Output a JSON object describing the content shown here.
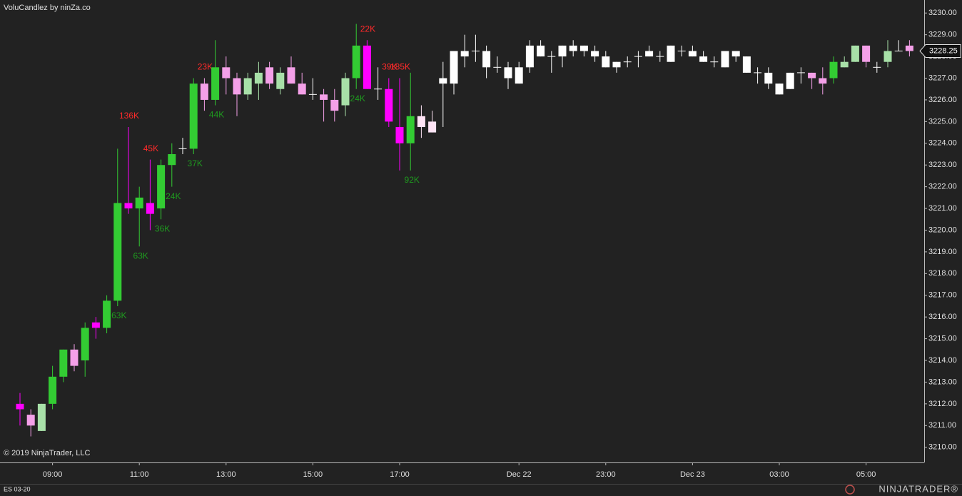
{
  "chart_data": {
    "type": "candlestick",
    "title": "VoluCandlez by ninZa.co",
    "copyright": "© 2019 NinjaTrader, LLC",
    "instrument": "ES 03-20",
    "brand": "NINJATRADER®",
    "categories": [
      null,
      null,
      null,
      "09:00",
      null,
      null,
      null,
      null,
      null,
      null,
      null,
      "11:00",
      null,
      null,
      null,
      null,
      null,
      null,
      null,
      "13:00",
      null,
      null,
      null,
      null,
      null,
      null,
      null,
      "15:00",
      null,
      null,
      null,
      null,
      null,
      null,
      null,
      "17:00",
      null,
      null,
      null,
      null,
      null,
      null,
      null,
      null,
      null,
      null,
      "Dec 22",
      null,
      null,
      null,
      null,
      null,
      null,
      null,
      "23:00",
      null,
      null,
      null,
      null,
      null,
      null,
      null,
      "Dec 23",
      null,
      null,
      null,
      null,
      null,
      null,
      null,
      "03:00",
      null,
      null,
      null,
      null,
      null,
      null,
      null,
      "05:00",
      null,
      null,
      null,
      null
    ],
    "open": [
      3212.0,
      3211.5,
      3210.75,
      3212.0,
      3213.25,
      3214.5,
      3214.0,
      3215.75,
      3215.5,
      3216.75,
      3221.25,
      3221.0,
      3221.25,
      3221.0,
      3223.0,
      3223.75,
      3223.75,
      3226.75,
      3226.0,
      3227.5,
      3227.0,
      3226.25,
      3226.75,
      3227.5,
      3226.5,
      3227.5,
      3226.75,
      3226.25,
      3226.25,
      3226.0,
      3225.75,
      3227.0,
      3228.5,
      3226.5,
      3226.5,
      3224.75,
      3224.0,
      3225.25,
      3225.0,
      3226.75,
      3226.75,
      3228.0,
      3228.25,
      3228.25,
      3227.5,
      3227.5,
      3226.75,
      3227.5,
      3228.5,
      3228.0,
      3228.0,
      3228.25,
      3228.5,
      3228.25,
      3228.0,
      3227.75,
      3227.75,
      3228.0,
      3228.0,
      3228.0,
      3227.75,
      3228.25,
      3228.25,
      3228.0,
      3227.75,
      3227.5,
      3228.25,
      3228.0,
      3227.25,
      3227.25,
      3226.75,
      3226.5,
      3227.25,
      3227.25,
      3227.0,
      3227.0,
      3227.5,
      3227.75,
      3228.5,
      3227.5,
      3227.75,
      3228.25,
      3228.5
    ],
    "high": [
      3212.5,
      3211.75,
      3212.0,
      3213.75,
      3214.5,
      3214.75,
      3215.75,
      3216.0,
      3217.0,
      3223.75,
      3224.75,
      3222.0,
      3223.25,
      3223.25,
      3224.0,
      3224.25,
      3227.0,
      3227.0,
      3228.75,
      3228.0,
      3227.25,
      3227.25,
      3227.75,
      3227.75,
      3227.5,
      3228.0,
      3227.25,
      3227.0,
      3226.5,
      3226.5,
      3227.25,
      3229.5,
      3228.75,
      3227.5,
      3227.0,
      3227.0,
      3227.25,
      3225.75,
      3225.5,
      3227.75,
      3228.25,
      3229.0,
      3229.0,
      3228.5,
      3228.0,
      3227.75,
      3227.75,
      3228.75,
      3228.75,
      3228.25,
      3228.5,
      3228.75,
      3228.5,
      3228.5,
      3228.25,
      3227.75,
      3228.0,
      3228.25,
      3228.5,
      3228.25,
      3228.5,
      3228.5,
      3228.5,
      3228.25,
      3228.0,
      3228.25,
      3228.25,
      3228.0,
      3227.5,
      3227.5,
      3226.75,
      3227.25,
      3227.5,
      3227.25,
      3227.5,
      3228.0,
      3228.0,
      3228.5,
      3228.5,
      3227.75,
      3228.75,
      3228.75,
      3228.75
    ],
    "low": [
      3211.0,
      3210.5,
      3210.75,
      3211.75,
      3213.0,
      3213.5,
      3213.25,
      3215.0,
      3215.25,
      3216.5,
      3220.75,
      3219.25,
      3220.0,
      3220.5,
      3222.0,
      3223.5,
      3223.5,
      3225.5,
      3225.75,
      3226.25,
      3225.25,
      3226.0,
      3226.0,
      3226.5,
      3226.25,
      3226.75,
      3226.25,
      3226.0,
      3225.0,
      3225.0,
      3225.25,
      3226.5,
      3226.5,
      3226.0,
      3224.75,
      3222.75,
      3222.75,
      3224.25,
      3224.5,
      3224.75,
      3226.25,
      3227.5,
      3227.75,
      3227.0,
      3227.25,
      3226.5,
      3226.75,
      3227.25,
      3228.0,
      3227.25,
      3227.5,
      3228.0,
      3228.0,
      3227.75,
      3227.5,
      3227.25,
      3227.5,
      3227.5,
      3228.0,
      3227.75,
      3227.75,
      3228.0,
      3228.0,
      3227.75,
      3227.5,
      3227.5,
      3227.75,
      3227.25,
      3226.75,
      3226.5,
      3226.25,
      3226.5,
      3226.75,
      3226.5,
      3226.25,
      3226.75,
      3227.5,
      3227.75,
      3227.5,
      3227.25,
      3227.5,
      3228.25,
      3228.0
    ],
    "close": [
      3211.75,
      3211.0,
      3212.0,
      3213.25,
      3214.5,
      3213.75,
      3215.5,
      3215.5,
      3216.75,
      3221.25,
      3221.0,
      3221.5,
      3220.75,
      3223.0,
      3223.5,
      3223.75,
      3226.75,
      3226.0,
      3227.5,
      3227.0,
      3226.25,
      3227.0,
      3227.25,
      3226.75,
      3227.25,
      3226.75,
      3226.25,
      3226.25,
      3226.0,
      3225.5,
      3227.0,
      3228.5,
      3226.5,
      3226.5,
      3225.0,
      3224.0,
      3225.25,
      3224.75,
      3224.5,
      3227.0,
      3228.25,
      3228.25,
      3228.25,
      3227.5,
      3227.5,
      3227.0,
      3227.5,
      3228.5,
      3228.0,
      3228.0,
      3228.5,
      3228.5,
      3228.25,
      3228.0,
      3227.5,
      3227.5,
      3227.75,
      3228.0,
      3228.25,
      3228.0,
      3228.5,
      3228.25,
      3228.0,
      3227.75,
      3227.75,
      3228.25,
      3228.0,
      3227.25,
      3227.25,
      3226.75,
      3226.25,
      3227.25,
      3227.25,
      3227.0,
      3226.75,
      3227.75,
      3227.75,
      3228.5,
      3227.75,
      3227.5,
      3228.25,
      3228.25,
      3228.25
    ],
    "colors": [
      "#ff00ff",
      "#f4a0e8",
      "#a8e0a8",
      "#33cc33",
      "#33cc33",
      "#f4a0e8",
      "#33cc33",
      "#ff00ff",
      "#33cc33",
      "#33cc33",
      "#ff00ff",
      "#33cc33",
      "#ff00ff",
      "#33cc33",
      "#33cc33",
      "#ffffff",
      "#33cc33",
      "#f4a0e8",
      "#33cc33",
      "#f4a0e8",
      "#f4a0e8",
      "#a8e0a8",
      "#a8e0a8",
      "#f4a0e8",
      "#a8e0a8",
      "#f4a0e8",
      "#f4a0e8",
      "#ffffff",
      "#f4a0e8",
      "#f4a0e8",
      "#a8e0a8",
      "#33cc33",
      "#ff00ff",
      "#ffffff",
      "#ff00ff",
      "#ff00ff",
      "#33cc33",
      "#ffe4f6",
      "#ffe4f6",
      "#ffffff",
      "#ffffff",
      "#ffffff",
      "#ffffff",
      "#ffffff",
      "#ffffff",
      "#ffffff",
      "#ffffff",
      "#ffffff",
      "#ffffff",
      "#ffffff",
      "#ffffff",
      "#ffffff",
      "#ffffff",
      "#ffffff",
      "#ffffff",
      "#ffffff",
      "#ffffff",
      "#ffffff",
      "#ffffff",
      "#ffffff",
      "#ffffff",
      "#ffffff",
      "#ffffff",
      "#ffffff",
      "#ffffff",
      "#ffffff",
      "#ffffff",
      "#ffffff",
      "#ffffff",
      "#ffffff",
      "#ffffff",
      "#ffffff",
      "#ffffff",
      "#f4a0e8",
      "#f4a0e8",
      "#33cc33",
      "#a8e0a8",
      "#a8e0a8",
      "#f4a0e8",
      "#ffffff",
      "#a8e0a8",
      "#ffffff",
      "#f4a0e8"
    ],
    "volume_labels_top": [
      null,
      null,
      null,
      null,
      null,
      null,
      null,
      null,
      null,
      null,
      "136K",
      null,
      "45K",
      null,
      null,
      null,
      null,
      "23K",
      null,
      null,
      null,
      null,
      null,
      null,
      null,
      null,
      null,
      null,
      null,
      null,
      null,
      null,
      "22K",
      null,
      "39K",
      "185K",
      null,
      null,
      null,
      null,
      null,
      null,
      null,
      null,
      null,
      null,
      null,
      null,
      null,
      null,
      null,
      null,
      null,
      null,
      null,
      null,
      null,
      null,
      null,
      null,
      null,
      null,
      null,
      null,
      null,
      null,
      null,
      null,
      null,
      null,
      null,
      null,
      null,
      null,
      null,
      null,
      null,
      null,
      null,
      null,
      null,
      null,
      null
    ],
    "volume_labels_bottom": [
      null,
      null,
      null,
      null,
      null,
      null,
      null,
      null,
      null,
      "63K",
      null,
      "63K",
      null,
      "36K",
      "24K",
      null,
      "37K",
      null,
      "44K",
      null,
      null,
      null,
      null,
      null,
      null,
      null,
      null,
      null,
      null,
      null,
      null,
      "24K",
      null,
      null,
      null,
      null,
      "92K",
      null,
      null,
      null,
      null,
      null,
      null,
      null,
      null,
      null,
      null,
      null,
      null,
      null,
      null,
      null,
      null,
      null,
      null,
      null,
      null,
      null,
      null,
      null,
      null,
      null,
      null,
      null,
      null,
      null,
      null,
      null,
      null,
      null,
      null,
      null,
      null,
      null,
      null,
      null,
      null,
      null,
      null,
      null,
      null,
      null,
      null
    ],
    "top_label_color": "#ff2a2a",
    "bottom_label_color": "#1f9a1f",
    "last_price": 3228.25,
    "ylim": [
      3209.3,
      3230.6
    ],
    "yticks": [
      {
        "value": 3210,
        "label": "3210.00"
      },
      {
        "value": 3211,
        "label": "3211.00"
      },
      {
        "value": 3212,
        "label": "3212.00"
      },
      {
        "value": 3213,
        "label": "3213.00"
      },
      {
        "value": 3214,
        "label": "3214.00"
      },
      {
        "value": 3215,
        "label": "3215.00"
      },
      {
        "value": 3216,
        "label": "3216.00"
      },
      {
        "value": 3217,
        "label": "3217.00"
      },
      {
        "value": 3218,
        "label": "3218.00"
      },
      {
        "value": 3219,
        "label": "3219.00"
      },
      {
        "value": 3220,
        "label": "3220.00"
      },
      {
        "value": 3221,
        "label": "3221.00"
      },
      {
        "value": 3222,
        "label": "3222.00"
      },
      {
        "value": 3223,
        "label": "3223.00"
      },
      {
        "value": 3224,
        "label": "3224.00"
      },
      {
        "value": 3225,
        "label": "3225.00"
      },
      {
        "value": 3226,
        "label": "3226.00"
      },
      {
        "value": 3227,
        "label": "3227.00"
      },
      {
        "value": 3228,
        "label": "3228.00"
      },
      {
        "value": 3229,
        "label": "3229.00"
      },
      {
        "value": 3230,
        "label": "3230.00"
      }
    ]
  }
}
